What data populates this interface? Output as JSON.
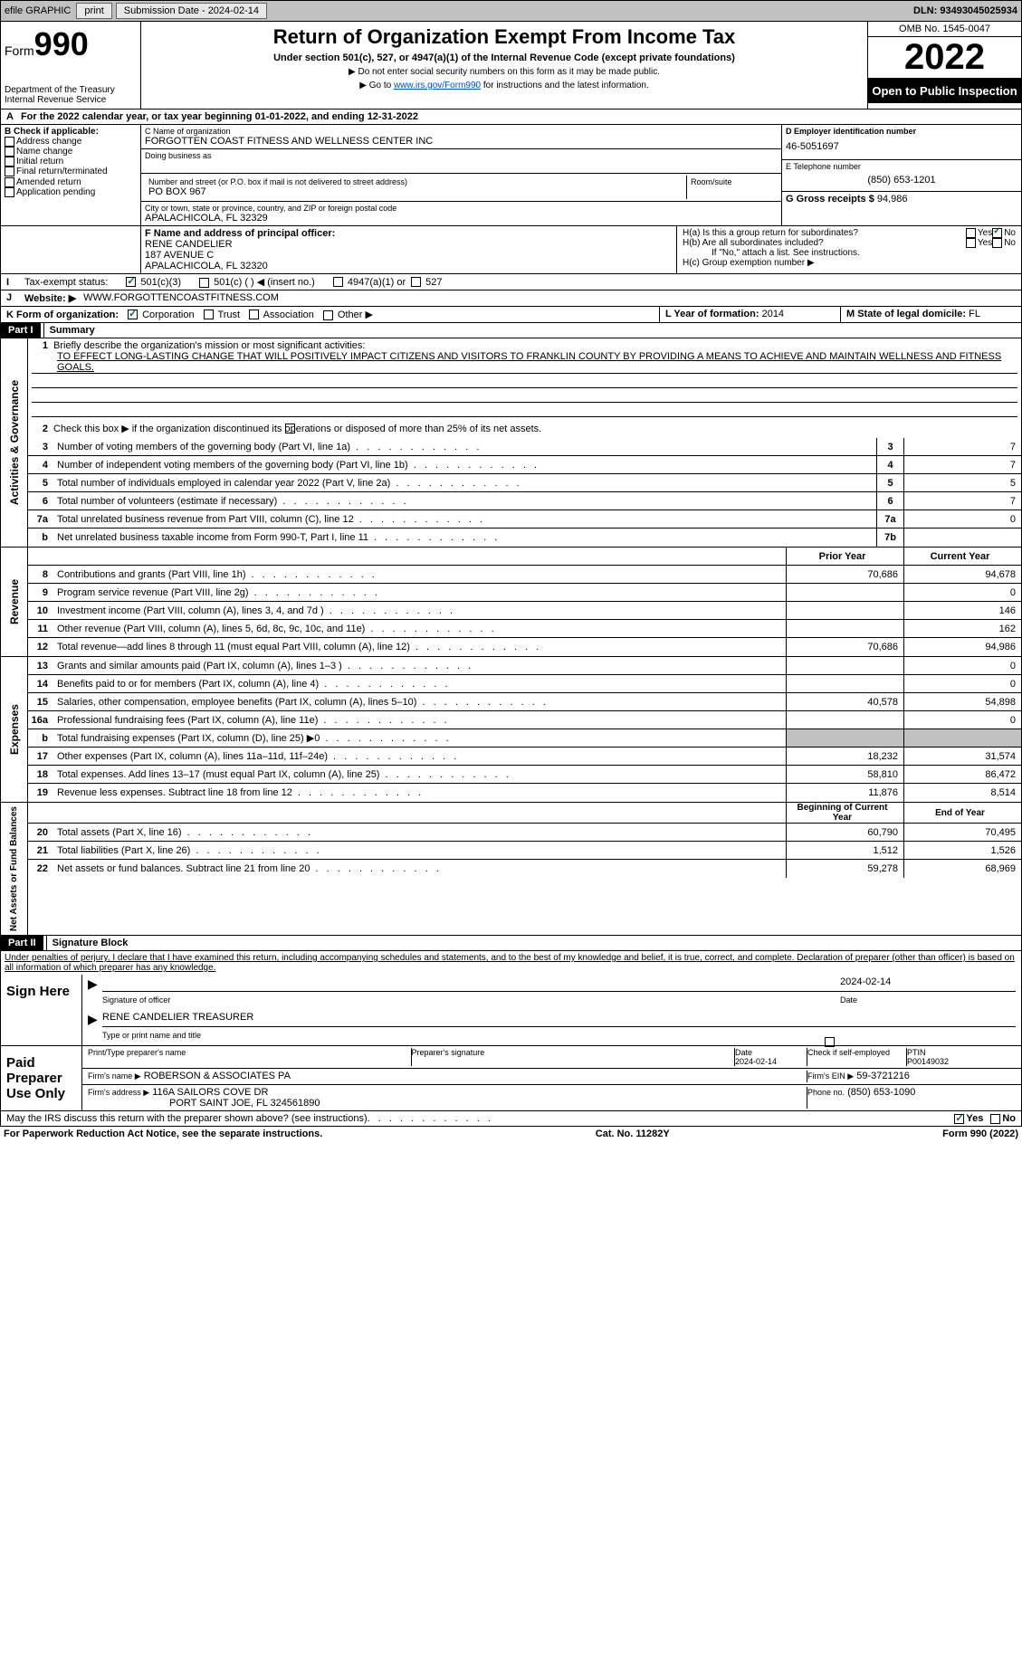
{
  "topbar": {
    "efile": "efile GRAPHIC",
    "print": "print",
    "subdate_label": "Submission Date - 2024-02-14",
    "dln": "DLN: 93493045025934"
  },
  "header": {
    "form_label": "Form",
    "form_num": "990",
    "dept": "Department of the Treasury",
    "irs": "Internal Revenue Service",
    "title": "Return of Organization Exempt From Income Tax",
    "subtitle": "Under section 501(c), 527, or 4947(a)(1) of the Internal Revenue Code (except private foundations)",
    "note1": "▶ Do not enter social security numbers on this form as it may be made public.",
    "note2_a": "▶ Go to ",
    "note2_link": "www.irs.gov/Form990",
    "note2_b": " for instructions and the latest information.",
    "omb": "OMB No. 1545-0047",
    "year": "2022",
    "open": "Open to Public Inspection"
  },
  "a": {
    "text_a": "For the 2022 calendar year, or tax year beginning ",
    "begin": "01-01-2022",
    "text_b": ", and ending ",
    "end": "12-31-2022"
  },
  "b": {
    "label": "B Check if applicable:",
    "opts": [
      "Address change",
      "Name change",
      "Initial return",
      "Final return/terminated",
      "Amended return",
      "Application pending"
    ]
  },
  "c": {
    "name_label": "C Name of organization",
    "name": "FORGOTTEN COAST FITNESS AND WELLNESS CENTER INC",
    "dba_label": "Doing business as",
    "street_label": "Number and street (or P.O. box if mail is not delivered to street address)",
    "room_label": "Room/suite",
    "street": "PO BOX 967",
    "city_label": "City or town, state or province, country, and ZIP or foreign postal code",
    "city": "APALACHICOLA, FL  32329"
  },
  "d": {
    "label": "D Employer identification number",
    "val": "46-5051697"
  },
  "e": {
    "label": "E Telephone number",
    "val": "(850) 653-1201"
  },
  "g": {
    "label": "G Gross receipts $",
    "val": "94,986"
  },
  "f": {
    "label": "F Name and address of principal officer:",
    "name": "RENE CANDELIER",
    "addr1": "187 AVENUE C",
    "addr2": "APALACHICOLA, FL  32320"
  },
  "h": {
    "a": "H(a)  Is this a group return for subordinates?",
    "b": "H(b)  Are all subordinates included?",
    "b_note": "If \"No,\" attach a list. See instructions.",
    "c": "H(c)  Group exemption number ▶",
    "yes": "Yes",
    "no": "No"
  },
  "i": {
    "label": "Tax-exempt status:",
    "o1": "501(c)(3)",
    "o2": "501(c) (   ) ◀ (insert no.)",
    "o3": "4947(a)(1) or",
    "o4": "527"
  },
  "j": {
    "label": "Website: ▶",
    "val": "WWW.FORGOTTENCOASTFITNESS.COM"
  },
  "k": {
    "label": "K Form of organization:",
    "o1": "Corporation",
    "o2": "Trust",
    "o3": "Association",
    "o4": "Other ▶"
  },
  "l": {
    "label": "L Year of formation:",
    "val": "2014"
  },
  "m": {
    "label": "M State of legal domicile:",
    "val": "FL"
  },
  "part1": {
    "label": "Part I",
    "title": "Summary",
    "l1": "Briefly describe the organization's mission or most significant activities:",
    "mission": "TO EFFECT LONG-LASTING CHANGE THAT WILL POSITIVELY IMPACT CITIZENS AND VISITORS TO FRANKLIN COUNTY BY PROVIDING A MEANS TO ACHIEVE AND MAINTAIN WELLNESS AND FITNESS GOALS.",
    "l2": "Check this box ▶       if the organization discontinued its operations or disposed of more than 25% of its net assets.",
    "side_ag": "Activities & Governance",
    "side_rev": "Revenue",
    "side_exp": "Expenses",
    "side_na": "Net Assets or Fund Balances",
    "prior": "Prior Year",
    "current": "Current Year",
    "begin": "Beginning of Current Year",
    "end": "End of Year",
    "rows_gov": [
      {
        "n": "3",
        "t": "Number of voting members of the governing body (Part VI, line 1a)",
        "b": "3",
        "v": "7"
      },
      {
        "n": "4",
        "t": "Number of independent voting members of the governing body (Part VI, line 1b)",
        "b": "4",
        "v": "7"
      },
      {
        "n": "5",
        "t": "Total number of individuals employed in calendar year 2022 (Part V, line 2a)",
        "b": "5",
        "v": "5"
      },
      {
        "n": "6",
        "t": "Total number of volunteers (estimate if necessary)",
        "b": "6",
        "v": "7"
      },
      {
        "n": "7a",
        "t": "Total unrelated business revenue from Part VIII, column (C), line 12",
        "b": "7a",
        "v": "0"
      },
      {
        "n": "b",
        "t": "Net unrelated business taxable income from Form 990-T, Part I, line 11",
        "b": "7b",
        "v": ""
      }
    ],
    "rows_rev": [
      {
        "n": "8",
        "t": "Contributions and grants (Part VIII, line 1h)",
        "p": "70,686",
        "c": "94,678"
      },
      {
        "n": "9",
        "t": "Program service revenue (Part VIII, line 2g)",
        "p": "",
        "c": "0"
      },
      {
        "n": "10",
        "t": "Investment income (Part VIII, column (A), lines 3, 4, and 7d )",
        "p": "",
        "c": "146"
      },
      {
        "n": "11",
        "t": "Other revenue (Part VIII, column (A), lines 5, 6d, 8c, 9c, 10c, and 11e)",
        "p": "",
        "c": "162"
      },
      {
        "n": "12",
        "t": "Total revenue—add lines 8 through 11 (must equal Part VIII, column (A), line 12)",
        "p": "70,686",
        "c": "94,986"
      }
    ],
    "rows_exp": [
      {
        "n": "13",
        "t": "Grants and similar amounts paid (Part IX, column (A), lines 1–3 )",
        "p": "",
        "c": "0"
      },
      {
        "n": "14",
        "t": "Benefits paid to or for members (Part IX, column (A), line 4)",
        "p": "",
        "c": "0"
      },
      {
        "n": "15",
        "t": "Salaries, other compensation, employee benefits (Part IX, column (A), lines 5–10)",
        "p": "40,578",
        "c": "54,898"
      },
      {
        "n": "16a",
        "t": "Professional fundraising fees (Part IX, column (A), line 11e)",
        "p": "",
        "c": "0"
      },
      {
        "n": "b",
        "t": "Total fundraising expenses (Part IX, column (D), line 25) ▶0",
        "p": "shade",
        "c": "shade"
      },
      {
        "n": "17",
        "t": "Other expenses (Part IX, column (A), lines 11a–11d, 11f–24e)",
        "p": "18,232",
        "c": "31,574"
      },
      {
        "n": "18",
        "t": "Total expenses. Add lines 13–17 (must equal Part IX, column (A), line 25)",
        "p": "58,810",
        "c": "86,472"
      },
      {
        "n": "19",
        "t": "Revenue less expenses. Subtract line 18 from line 12",
        "p": "11,876",
        "c": "8,514"
      }
    ],
    "rows_na": [
      {
        "n": "20",
        "t": "Total assets (Part X, line 16)",
        "p": "60,790",
        "c": "70,495"
      },
      {
        "n": "21",
        "t": "Total liabilities (Part X, line 26)",
        "p": "1,512",
        "c": "1,526"
      },
      {
        "n": "22",
        "t": "Net assets or fund balances. Subtract line 21 from line 20",
        "p": "59,278",
        "c": "68,969"
      }
    ]
  },
  "part2": {
    "label": "Part II",
    "title": "Signature Block",
    "decl": "Under penalties of perjury, I declare that I have examined this return, including accompanying schedules and statements, and to the best of my knowledge and belief, it is true, correct, and complete. Declaration of preparer (other than officer) is based on all information of which preparer has any knowledge.",
    "sign": "Sign Here",
    "sig_officer": "Signature of officer",
    "sig_date": "2024-02-14",
    "sig_name": "RENE CANDELIER  TREASURER",
    "sig_type": "Type or print name and title",
    "date_label": "Date",
    "paid": "Paid Preparer Use Only",
    "prep_name_label": "Print/Type preparer's name",
    "prep_sig_label": "Preparer's signature",
    "prep_date": "2024-02-14",
    "check_self": "Check        if self-employed",
    "ptin_label": "PTIN",
    "ptin": "P00149032",
    "firm_name_label": "Firm's name     ▶",
    "firm_name": "ROBERSON & ASSOCIATES PA",
    "firm_ein_label": "Firm's EIN ▶",
    "firm_ein": "59-3721216",
    "firm_addr_label": "Firm's address ▶",
    "firm_addr1": "116A SAILORS COVE DR",
    "firm_addr2": "PORT SAINT JOE, FL  324561890",
    "phone_label": "Phone no.",
    "phone": "(850) 653-1090",
    "discuss": "May the IRS discuss this return with the preparer shown above? (see instructions)"
  },
  "footer": {
    "pra": "For Paperwork Reduction Act Notice, see the separate instructions.",
    "cat": "Cat. No. 11282Y",
    "form": "Form 990 (2022)"
  }
}
